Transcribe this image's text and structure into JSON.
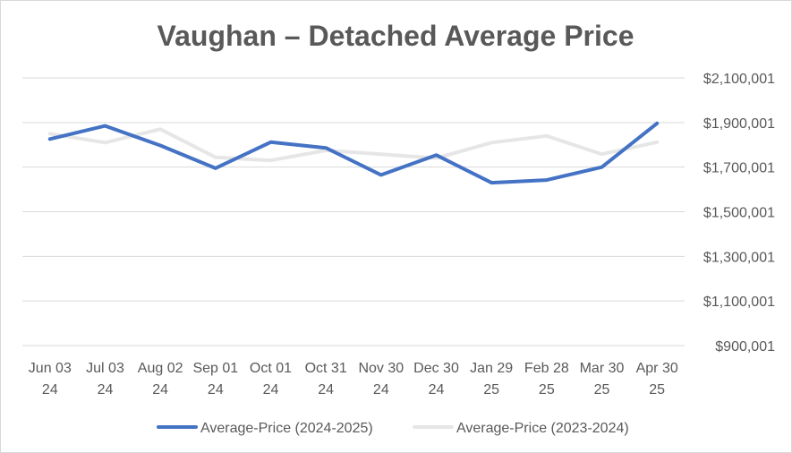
{
  "chart_data": {
    "type": "line",
    "title": "Vaughan – Detached Average Price",
    "xlabel": "",
    "ylabel": "",
    "ylim": [
      900001,
      2100001
    ],
    "y_ticks": [
      "$2,100,001",
      "$1,900,001",
      "$1,700,001",
      "$1,500,001",
      "$1,300,001",
      "$1,100,001",
      "$900,001"
    ],
    "y_tick_values": [
      2100001,
      1900001,
      1700001,
      1500001,
      1300001,
      1100001,
      900001
    ],
    "categories": [
      [
        "Jun 03",
        "24"
      ],
      [
        "Jul 03",
        "24"
      ],
      [
        "Aug 02",
        "24"
      ],
      [
        "Sep 01",
        "24"
      ],
      [
        "Oct 01",
        "24"
      ],
      [
        "Oct 31",
        "24"
      ],
      [
        "Nov 30",
        "24"
      ],
      [
        "Dec 30",
        "24"
      ],
      [
        "Jan 29",
        "25"
      ],
      [
        "Feb 28",
        "25"
      ],
      [
        "Mar 30",
        "25"
      ],
      [
        "Apr 30",
        "25"
      ]
    ],
    "grid": true,
    "legend_position": "bottom",
    "series": [
      {
        "name": "Average-Price (2024-2025)",
        "color": "#4472c4",
        "values": [
          1826000,
          1885000,
          1797000,
          1695000,
          1812000,
          1786000,
          1665000,
          1754000,
          1630000,
          1642000,
          1700000,
          1896000
        ]
      },
      {
        "name": "Average-Price (2023-2024)",
        "color": "#e7e6e6",
        "values": [
          1850000,
          1810000,
          1870000,
          1744000,
          1730000,
          1775000,
          1758000,
          1740000,
          1810000,
          1840000,
          1758000,
          1812000
        ]
      }
    ]
  }
}
